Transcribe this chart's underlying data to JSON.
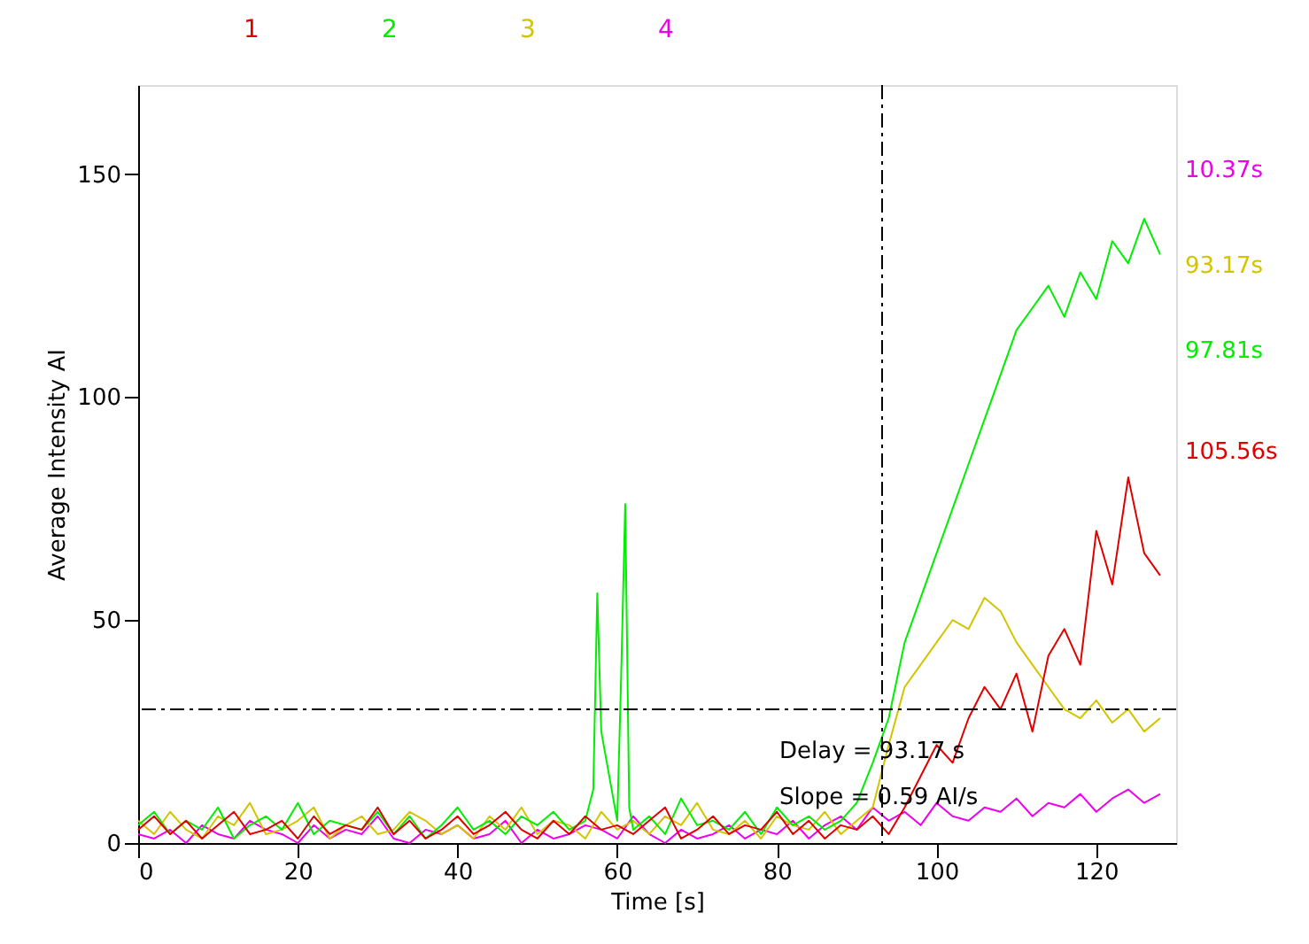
{
  "chart_data": {
    "type": "line",
    "xlabel": "Time [s]",
    "ylabel": "Average Intensity AI",
    "x": [
      0,
      2,
      4,
      6,
      8,
      10,
      12,
      14,
      16,
      18,
      20,
      22,
      24,
      26,
      28,
      30,
      32,
      34,
      36,
      38,
      40,
      42,
      44,
      46,
      48,
      50,
      52,
      54,
      56,
      58,
      60,
      62,
      64,
      66,
      68,
      70,
      72,
      74,
      76,
      78,
      80,
      82,
      84,
      86,
      88,
      90,
      92,
      94,
      96,
      98,
      100,
      102,
      104,
      106,
      108,
      110,
      112,
      114,
      116,
      118,
      120,
      122,
      124,
      126,
      128
    ],
    "series": [
      {
        "name": "1",
        "color": "#e00000",
        "values": [
          3,
          6,
          2,
          5,
          1,
          4,
          7,
          2,
          3,
          5,
          1,
          6,
          2,
          4,
          3,
          8,
          2,
          5,
          1,
          3,
          6,
          2,
          4,
          7,
          3,
          1,
          5,
          2,
          6,
          3,
          4,
          2,
          5,
          8,
          1,
          3,
          6,
          2,
          4,
          3,
          7,
          2,
          5,
          1,
          4,
          3,
          6,
          2,
          8,
          15,
          22,
          18,
          28,
          35,
          30,
          38,
          25,
          42,
          48,
          40,
          70,
          58,
          82,
          65,
          60
        ]
      },
      {
        "name": "2",
        "color": "#00ee00",
        "x": [
          0,
          2,
          4,
          6,
          8,
          10,
          12,
          14,
          16,
          18,
          20,
          22,
          24,
          26,
          28,
          30,
          32,
          34,
          36,
          38,
          40,
          42,
          44,
          46,
          48,
          50,
          52,
          54,
          56,
          57,
          57.5,
          58,
          60,
          60.5,
          61,
          61.5,
          62,
          64,
          66,
          68,
          70,
          72,
          74,
          76,
          78,
          80,
          82,
          84,
          86,
          88,
          90,
          92,
          94,
          96,
          98,
          100,
          102,
          104,
          106,
          108,
          110,
          112,
          114,
          116,
          118,
          120,
          122,
          124,
          126,
          128
        ],
        "values": [
          4,
          7,
          2,
          5,
          3,
          8,
          1,
          4,
          6,
          3,
          9,
          2,
          5,
          4,
          3,
          7,
          2,
          6,
          1,
          4,
          8,
          3,
          5,
          2,
          6,
          4,
          7,
          3,
          5,
          12,
          56,
          25,
          5,
          38,
          76,
          8,
          3,
          6,
          2,
          10,
          4,
          5,
          3,
          7,
          2,
          8,
          4,
          6,
          3,
          5,
          9,
          18,
          28,
          45,
          55,
          65,
          75,
          85,
          95,
          105,
          115,
          120,
          125,
          118,
          128,
          122,
          135,
          130,
          140,
          132
        ]
      },
      {
        "name": "3",
        "color": "#d4c400",
        "values": [
          5,
          2,
          7,
          3,
          1,
          6,
          4,
          9,
          2,
          3,
          5,
          8,
          1,
          4,
          6,
          2,
          3,
          7,
          5,
          2,
          4,
          1,
          6,
          3,
          8,
          2,
          5,
          4,
          1,
          7,
          3,
          5,
          2,
          6,
          4,
          9,
          3,
          2,
          5,
          1,
          6,
          4,
          3,
          7,
          2,
          5,
          8,
          22,
          35,
          40,
          45,
          50,
          48,
          55,
          52,
          45,
          40,
          35,
          30,
          28,
          32,
          27,
          30,
          25,
          28
        ]
      },
      {
        "name": "4",
        "color": "#ee00ee",
        "values": [
          2,
          1,
          3,
          0,
          4,
          2,
          1,
          5,
          3,
          2,
          0,
          4,
          1,
          3,
          2,
          6,
          1,
          0,
          3,
          2,
          4,
          1,
          2,
          5,
          0,
          3,
          1,
          2,
          4,
          3,
          1,
          6,
          2,
          0,
          3,
          1,
          2,
          4,
          1,
          3,
          2,
          5,
          1,
          4,
          6,
          3,
          8,
          5,
          7,
          4,
          9,
          6,
          5,
          8,
          7,
          10,
          6,
          9,
          8,
          11,
          7,
          10,
          12,
          9,
          11
        ]
      }
    ],
    "xlim": [
      0,
      130
    ],
    "xticks": [
      0,
      20,
      40,
      60,
      80,
      100,
      120
    ],
    "ylim": [
      0,
      170
    ],
    "yticks": [
      0,
      50,
      100,
      150
    ],
    "ref_lines": [
      {
        "axis": "x",
        "value": 93.17
      },
      {
        "axis": "y",
        "value": 30
      }
    ],
    "annotations": [
      "10.37s",
      "93.17s",
      "97.81s",
      "105.56s",
      "Delay = 93.17 s",
      "Slope = 0.59 AI/s"
    ],
    "legend": "top",
    "grid": false,
    "marker": "none",
    "line_style": "solid"
  }
}
